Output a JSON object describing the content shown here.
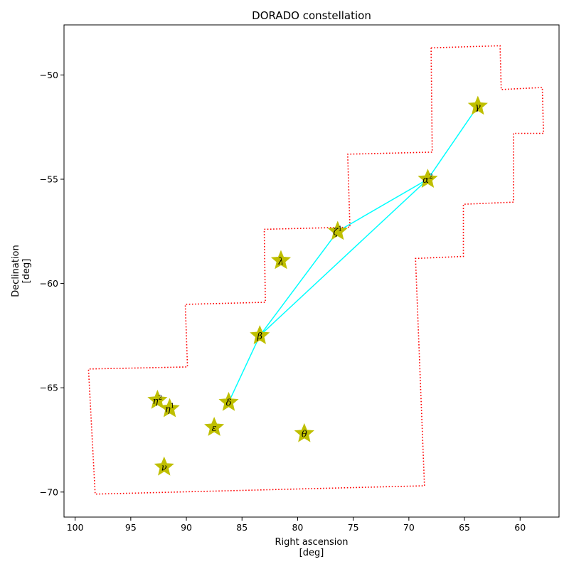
{
  "chart_data": {
    "type": "scatter",
    "title": "DORADO constellation",
    "xlabel": [
      "Right ascension",
      "[deg]"
    ],
    "ylabel": [
      "Declination",
      "[deg]"
    ],
    "xlim": [
      101.0,
      56.5
    ],
    "ylim": [
      -71.2,
      -47.6
    ],
    "x_ticks": [
      100,
      95,
      90,
      85,
      80,
      75,
      70,
      65,
      60
    ],
    "x_tick_labels": [
      "100",
      "95",
      "90",
      "85",
      "80",
      "75",
      "70",
      "65",
      "60"
    ],
    "y_ticks": [
      -50,
      -55,
      -60,
      -65,
      -70
    ],
    "y_tick_labels": [
      "−50",
      "−55",
      "−60",
      "−65",
      "−70"
    ],
    "grid": false,
    "stars": [
      {
        "label": "γ",
        "ra": 63.8,
        "dec": -51.5
      },
      {
        "label": "α",
        "sup": "2",
        "ra": 68.3,
        "dec": -55.0
      },
      {
        "label": "ζ",
        "sup": "1",
        "ra": 76.4,
        "dec": -57.5
      },
      {
        "label": "λ",
        "ra": 81.5,
        "dec": -58.9
      },
      {
        "label": "β",
        "ra": 83.4,
        "dec": -62.5
      },
      {
        "label": "δ",
        "ra": 86.2,
        "dec": -65.7
      },
      {
        "label": "ε",
        "ra": 87.5,
        "dec": -66.9
      },
      {
        "label": "η",
        "sup": "2",
        "ra": 92.6,
        "dec": -65.6
      },
      {
        "label": "η",
        "sup": "1",
        "ra": 91.5,
        "dec": -66.0
      },
      {
        "label": "θ",
        "ra": 79.4,
        "dec": -67.2
      },
      {
        "label": "ν",
        "ra": 92.0,
        "dec": -68.8
      }
    ],
    "star_color": "#bfbf00",
    "line_color": "#00ffff",
    "boundary_color": "#ff0000",
    "lines": [
      [
        [
          63.8,
          -51.5
        ],
        [
          68.3,
          -55.0
        ]
      ],
      [
        [
          68.3,
          -55.0
        ],
        [
          76.4,
          -57.5
        ]
      ],
      [
        [
          68.3,
          -55.0
        ],
        [
          83.4,
          -62.5
        ]
      ],
      [
        [
          76.4,
          -57.5
        ],
        [
          83.4,
          -62.5
        ]
      ],
      [
        [
          83.4,
          -62.5
        ],
        [
          86.2,
          -65.7
        ]
      ]
    ],
    "boundary": [
      [
        68.0,
        -48.7
      ],
      [
        61.8,
        -48.6
      ],
      [
        61.7,
        -50.7
      ],
      [
        58.0,
        -50.6
      ],
      [
        57.9,
        -52.8
      ],
      [
        60.6,
        -52.8
      ],
      [
        60.6,
        -56.1
      ],
      [
        65.1,
        -56.2
      ],
      [
        65.1,
        -58.7
      ],
      [
        69.4,
        -58.8
      ],
      [
        68.6,
        -69.7
      ],
      [
        98.2,
        -70.1
      ],
      [
        98.8,
        -64.1
      ],
      [
        89.9,
        -64.0
      ],
      [
        90.1,
        -61.0
      ],
      [
        82.9,
        -60.9
      ],
      [
        83.0,
        -57.4
      ],
      [
        75.3,
        -57.3
      ],
      [
        75.5,
        -53.8
      ],
      [
        67.9,
        -53.7
      ],
      [
        68.0,
        -48.7
      ]
    ]
  }
}
